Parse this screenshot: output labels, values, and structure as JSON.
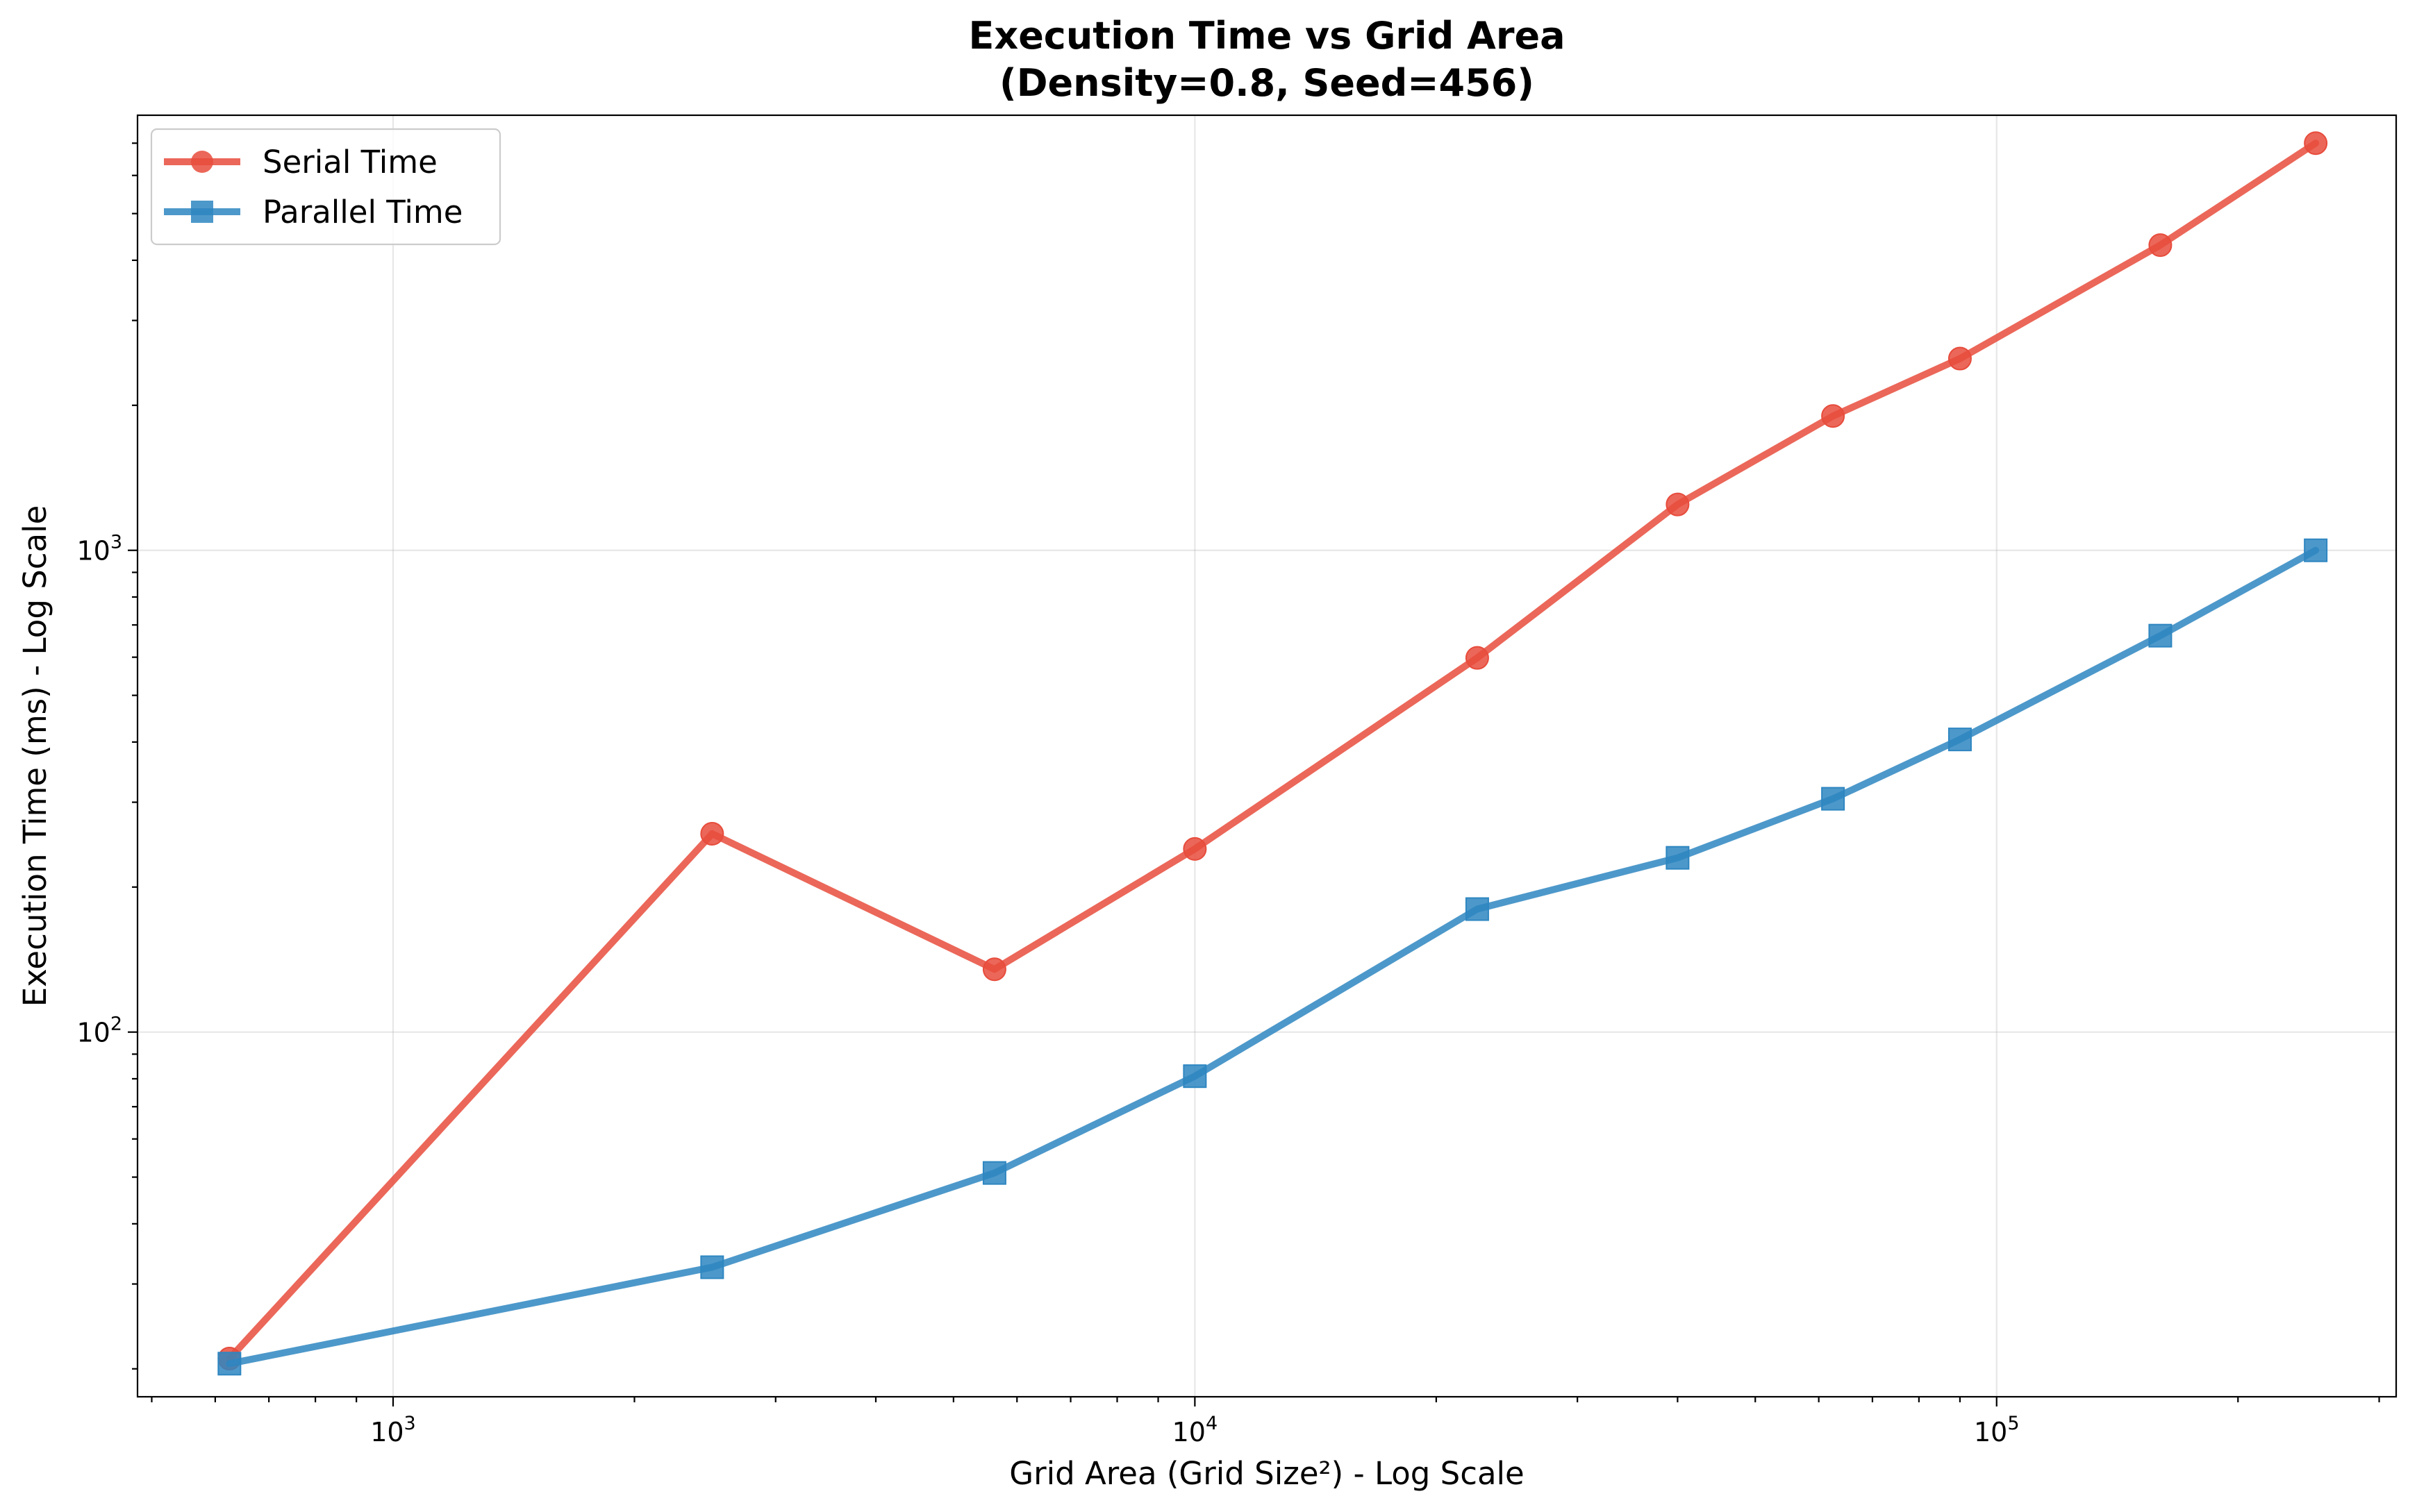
{
  "chart_data": {
    "type": "line",
    "title": [
      "Execution Time vs Grid Area",
      "(Density=0.8, Seed=456)"
    ],
    "xlabel": "Grid Area (Grid Size²) - Log Scale",
    "ylabel": "Execution Time (ms) - Log Scale",
    "xscale": "log",
    "yscale": "log",
    "xlim": [
      480,
      315000
    ],
    "ylim": [
      17.5,
      8000
    ],
    "grid": true,
    "legend_position": "top-left",
    "x_ticks": [
      {
        "value": 1000,
        "base": "10",
        "exp": "3"
      },
      {
        "value": 10000,
        "base": "10",
        "exp": "4"
      },
      {
        "value": 100000,
        "base": "10",
        "exp": "5"
      }
    ],
    "y_ticks": [
      {
        "value": 100,
        "base": "10",
        "exp": "2"
      },
      {
        "value": 1000,
        "base": "10",
        "exp": "3"
      }
    ],
    "x": [
      625,
      2500,
      5625,
      10000,
      22500,
      40000,
      62500,
      90000,
      160000,
      250000
    ],
    "series": [
      {
        "name": "Serial Time",
        "color": "#e74c3c",
        "marker": "circle",
        "values": [
          21,
          258,
          135,
          240,
          598,
          1245,
          1900,
          2500,
          4300,
          7000
        ]
      },
      {
        "name": "Parallel Time",
        "color": "#2e86c1",
        "marker": "square",
        "values": [
          20.5,
          32.5,
          51,
          81,
          180,
          230,
          305,
          405,
          665,
          1000
        ]
      }
    ]
  }
}
